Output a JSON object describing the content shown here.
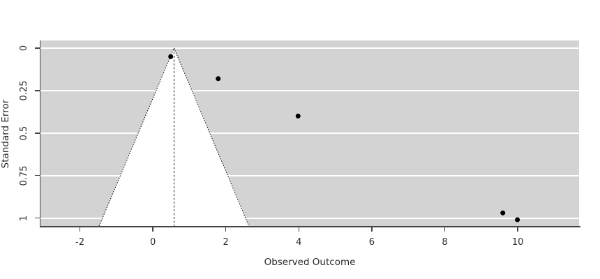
{
  "chart_data": {
    "type": "scatter",
    "subtype": "funnel-plot",
    "title": "",
    "xlabel": "Observed Outcome",
    "ylabel": "Standard Error",
    "x_ticks": [
      -2,
      0,
      2,
      4,
      6,
      8,
      10
    ],
    "x_tick_labels": [
      "-2",
      "0",
      "2",
      "4",
      "6",
      "8",
      "10"
    ],
    "se_ticks": [
      0,
      0.25,
      0.5,
      0.75,
      1
    ],
    "se_tick_labels": [
      "0",
      "0.25",
      "0.5",
      "0.75",
      "1"
    ],
    "xlim": [
      -3.08,
      11.68
    ],
    "se_lim": [
      -0.045,
      1.047
    ],
    "y_axis_inverted": true,
    "estimate": 0.58,
    "ci_multiplier": 1.96,
    "points": [
      {
        "x": 0.49,
        "se": 0.05
      },
      {
        "x": 1.79,
        "se": 0.18
      },
      {
        "x": 3.98,
        "se": 0.4
      },
      {
        "x": 9.59,
        "se": 0.97
      },
      {
        "x": 9.99,
        "se": 1.01
      }
    ],
    "grid": "horizontal-white-lines",
    "legend": null,
    "colors": {
      "page_background": "#ffffff",
      "plot_background": "#d3d3d3",
      "funnel_fill": "#ffffff",
      "gridline": "#ffffff",
      "funnel_border": "#000000",
      "reference_line": "#000000",
      "point": "#000000",
      "axis": "#444444",
      "text": "#2b2b2b"
    }
  }
}
